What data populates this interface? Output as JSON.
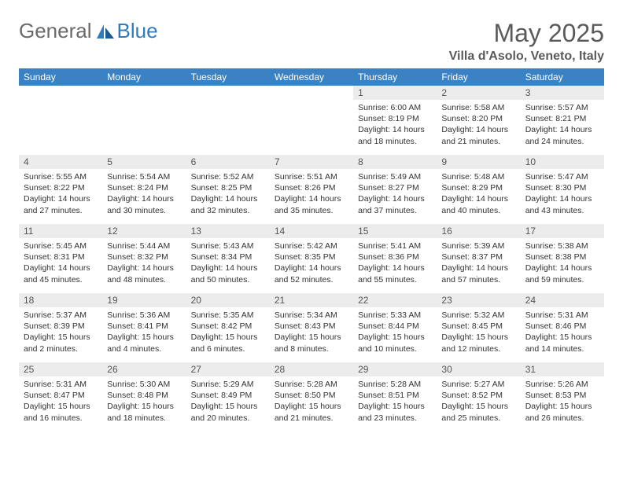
{
  "brand": {
    "part1": "General",
    "part2": "Blue"
  },
  "title": "May 2025",
  "location": "Villa d'Asolo, Veneto, Italy",
  "colors": {
    "header_bg": "#3b82c4",
    "header_text": "#ffffff",
    "daynum_bg": "#ececec",
    "logo_gray": "#6a6a6a",
    "logo_blue": "#2f7bbf",
    "text": "#333333",
    "title_color": "#5a5a5a"
  },
  "weekdays": [
    "Sunday",
    "Monday",
    "Tuesday",
    "Wednesday",
    "Thursday",
    "Friday",
    "Saturday"
  ],
  "weeks": [
    [
      null,
      null,
      null,
      null,
      {
        "n": "1",
        "sr": "Sunrise: 6:00 AM",
        "ss": "Sunset: 8:19 PM",
        "dl": "Daylight: 14 hours and 18 minutes."
      },
      {
        "n": "2",
        "sr": "Sunrise: 5:58 AM",
        "ss": "Sunset: 8:20 PM",
        "dl": "Daylight: 14 hours and 21 minutes."
      },
      {
        "n": "3",
        "sr": "Sunrise: 5:57 AM",
        "ss": "Sunset: 8:21 PM",
        "dl": "Daylight: 14 hours and 24 minutes."
      }
    ],
    [
      {
        "n": "4",
        "sr": "Sunrise: 5:55 AM",
        "ss": "Sunset: 8:22 PM",
        "dl": "Daylight: 14 hours and 27 minutes."
      },
      {
        "n": "5",
        "sr": "Sunrise: 5:54 AM",
        "ss": "Sunset: 8:24 PM",
        "dl": "Daylight: 14 hours and 30 minutes."
      },
      {
        "n": "6",
        "sr": "Sunrise: 5:52 AM",
        "ss": "Sunset: 8:25 PM",
        "dl": "Daylight: 14 hours and 32 minutes."
      },
      {
        "n": "7",
        "sr": "Sunrise: 5:51 AM",
        "ss": "Sunset: 8:26 PM",
        "dl": "Daylight: 14 hours and 35 minutes."
      },
      {
        "n": "8",
        "sr": "Sunrise: 5:49 AM",
        "ss": "Sunset: 8:27 PM",
        "dl": "Daylight: 14 hours and 37 minutes."
      },
      {
        "n": "9",
        "sr": "Sunrise: 5:48 AM",
        "ss": "Sunset: 8:29 PM",
        "dl": "Daylight: 14 hours and 40 minutes."
      },
      {
        "n": "10",
        "sr": "Sunrise: 5:47 AM",
        "ss": "Sunset: 8:30 PM",
        "dl": "Daylight: 14 hours and 43 minutes."
      }
    ],
    [
      {
        "n": "11",
        "sr": "Sunrise: 5:45 AM",
        "ss": "Sunset: 8:31 PM",
        "dl": "Daylight: 14 hours and 45 minutes."
      },
      {
        "n": "12",
        "sr": "Sunrise: 5:44 AM",
        "ss": "Sunset: 8:32 PM",
        "dl": "Daylight: 14 hours and 48 minutes."
      },
      {
        "n": "13",
        "sr": "Sunrise: 5:43 AM",
        "ss": "Sunset: 8:34 PM",
        "dl": "Daylight: 14 hours and 50 minutes."
      },
      {
        "n": "14",
        "sr": "Sunrise: 5:42 AM",
        "ss": "Sunset: 8:35 PM",
        "dl": "Daylight: 14 hours and 52 minutes."
      },
      {
        "n": "15",
        "sr": "Sunrise: 5:41 AM",
        "ss": "Sunset: 8:36 PM",
        "dl": "Daylight: 14 hours and 55 minutes."
      },
      {
        "n": "16",
        "sr": "Sunrise: 5:39 AM",
        "ss": "Sunset: 8:37 PM",
        "dl": "Daylight: 14 hours and 57 minutes."
      },
      {
        "n": "17",
        "sr": "Sunrise: 5:38 AM",
        "ss": "Sunset: 8:38 PM",
        "dl": "Daylight: 14 hours and 59 minutes."
      }
    ],
    [
      {
        "n": "18",
        "sr": "Sunrise: 5:37 AM",
        "ss": "Sunset: 8:39 PM",
        "dl": "Daylight: 15 hours and 2 minutes."
      },
      {
        "n": "19",
        "sr": "Sunrise: 5:36 AM",
        "ss": "Sunset: 8:41 PM",
        "dl": "Daylight: 15 hours and 4 minutes."
      },
      {
        "n": "20",
        "sr": "Sunrise: 5:35 AM",
        "ss": "Sunset: 8:42 PM",
        "dl": "Daylight: 15 hours and 6 minutes."
      },
      {
        "n": "21",
        "sr": "Sunrise: 5:34 AM",
        "ss": "Sunset: 8:43 PM",
        "dl": "Daylight: 15 hours and 8 minutes."
      },
      {
        "n": "22",
        "sr": "Sunrise: 5:33 AM",
        "ss": "Sunset: 8:44 PM",
        "dl": "Daylight: 15 hours and 10 minutes."
      },
      {
        "n": "23",
        "sr": "Sunrise: 5:32 AM",
        "ss": "Sunset: 8:45 PM",
        "dl": "Daylight: 15 hours and 12 minutes."
      },
      {
        "n": "24",
        "sr": "Sunrise: 5:31 AM",
        "ss": "Sunset: 8:46 PM",
        "dl": "Daylight: 15 hours and 14 minutes."
      }
    ],
    [
      {
        "n": "25",
        "sr": "Sunrise: 5:31 AM",
        "ss": "Sunset: 8:47 PM",
        "dl": "Daylight: 15 hours and 16 minutes."
      },
      {
        "n": "26",
        "sr": "Sunrise: 5:30 AM",
        "ss": "Sunset: 8:48 PM",
        "dl": "Daylight: 15 hours and 18 minutes."
      },
      {
        "n": "27",
        "sr": "Sunrise: 5:29 AM",
        "ss": "Sunset: 8:49 PM",
        "dl": "Daylight: 15 hours and 20 minutes."
      },
      {
        "n": "28",
        "sr": "Sunrise: 5:28 AM",
        "ss": "Sunset: 8:50 PM",
        "dl": "Daylight: 15 hours and 21 minutes."
      },
      {
        "n": "29",
        "sr": "Sunrise: 5:28 AM",
        "ss": "Sunset: 8:51 PM",
        "dl": "Daylight: 15 hours and 23 minutes."
      },
      {
        "n": "30",
        "sr": "Sunrise: 5:27 AM",
        "ss": "Sunset: 8:52 PM",
        "dl": "Daylight: 15 hours and 25 minutes."
      },
      {
        "n": "31",
        "sr": "Sunrise: 5:26 AM",
        "ss": "Sunset: 8:53 PM",
        "dl": "Daylight: 15 hours and 26 minutes."
      }
    ]
  ]
}
